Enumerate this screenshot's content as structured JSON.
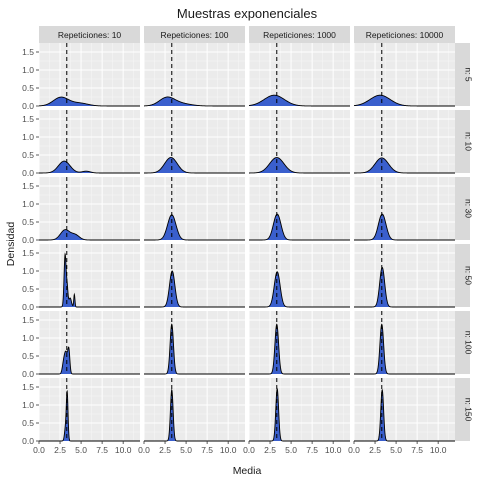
{
  "chart_data": {
    "type": "area",
    "title": "Muestras exponenciales",
    "xlabel": "Media",
    "ylabel": "Densidad",
    "xlim": [
      0,
      12
    ],
    "ylim": [
      0,
      1.75
    ],
    "x_ticks": [
      0,
      2.5,
      5,
      7.5,
      10
    ],
    "x_tick_labels": [
      "0.0",
      "2.5",
      "5.0",
      "7.5",
      "10.0"
    ],
    "y_ticks": [
      0,
      0.5,
      1,
      1.5
    ],
    "y_tick_labels": [
      "0.0",
      "0.5",
      "1.0",
      "1.5"
    ],
    "vline_x": 3.3,
    "fill_color": "#3a5fcd",
    "line_color": "#000000",
    "panel_bg": "#ebebeb",
    "strip_bg": "#d9d9d9",
    "grid": true,
    "col_facets": [
      "Repeticiones: 10",
      "Repeticiones: 100",
      "Repeticiones: 1000",
      "Repeticiones: 10000"
    ],
    "row_facets": [
      "n: 5",
      "n: 10",
      "n: 30",
      "n: 50",
      "n: 100",
      "n: 150"
    ],
    "panels": [
      [
        {
          "components": [
            [
              2.6,
              0.9,
              0.24
            ],
            [
              4.8,
              1.0,
              0.08
            ]
          ]
        },
        {
          "components": [
            [
              3.0,
              0.7,
              0.33
            ],
            [
              5.6,
              0.5,
              0.05
            ]
          ]
        },
        {
          "components": [
            [
              3.1,
              0.55,
              0.28
            ],
            [
              4.3,
              0.5,
              0.14
            ]
          ]
        },
        {
          "components": [
            [
              3.1,
              0.12,
              1.45
            ],
            [
              3.35,
              0.1,
              0.5
            ],
            [
              4.2,
              0.07,
              0.35
            ],
            [
              3.7,
              0.15,
              0.25
            ]
          ]
        },
        {
          "components": [
            [
              3.2,
              0.2,
              0.6
            ],
            [
              3.55,
              0.12,
              0.6
            ],
            [
              2.9,
              0.15,
              0.2
            ]
          ]
        },
        {
          "components": [
            [
              3.35,
              0.1,
              1.3
            ],
            [
              3.15,
              0.12,
              0.35
            ]
          ]
        }
      ],
      [
        {
          "components": [
            [
              2.7,
              0.9,
              0.22
            ],
            [
              4.3,
              1.2,
              0.07
            ]
          ]
        },
        {
          "components": [
            [
              3.2,
              0.75,
              0.43
            ]
          ]
        },
        {
          "components": [
            [
              3.3,
              0.5,
              0.7
            ]
          ]
        },
        {
          "components": [
            [
              3.35,
              0.32,
              1.0
            ]
          ]
        },
        {
          "components": [
            [
              3.3,
              0.2,
              1.38
            ]
          ]
        },
        {
          "components": [
            [
              3.3,
              0.16,
              1.42
            ]
          ]
        }
      ],
      [
        {
          "components": [
            [
              3.0,
              1.2,
              0.3
            ]
          ]
        },
        {
          "components": [
            [
              3.3,
              0.85,
              0.43
            ]
          ]
        },
        {
          "components": [
            [
              3.35,
              0.45,
              0.72
            ]
          ]
        },
        {
          "components": [
            [
              3.35,
              0.35,
              0.98
            ]
          ]
        },
        {
          "components": [
            [
              3.3,
              0.22,
              1.38
            ]
          ]
        },
        {
          "components": [
            [
              3.35,
              0.17,
              1.45
            ]
          ]
        }
      ],
      [
        {
          "components": [
            [
              3.1,
              1.2,
              0.3
            ]
          ]
        },
        {
          "components": [
            [
              3.3,
              0.8,
              0.42
            ]
          ]
        },
        {
          "components": [
            [
              3.35,
              0.45,
              0.72
            ]
          ]
        },
        {
          "components": [
            [
              3.35,
              0.3,
              1.1
            ]
          ]
        },
        {
          "components": [
            [
              3.3,
              0.22,
              1.38
            ]
          ]
        },
        {
          "components": [
            [
              3.35,
              0.17,
              1.42
            ]
          ]
        }
      ]
    ]
  }
}
